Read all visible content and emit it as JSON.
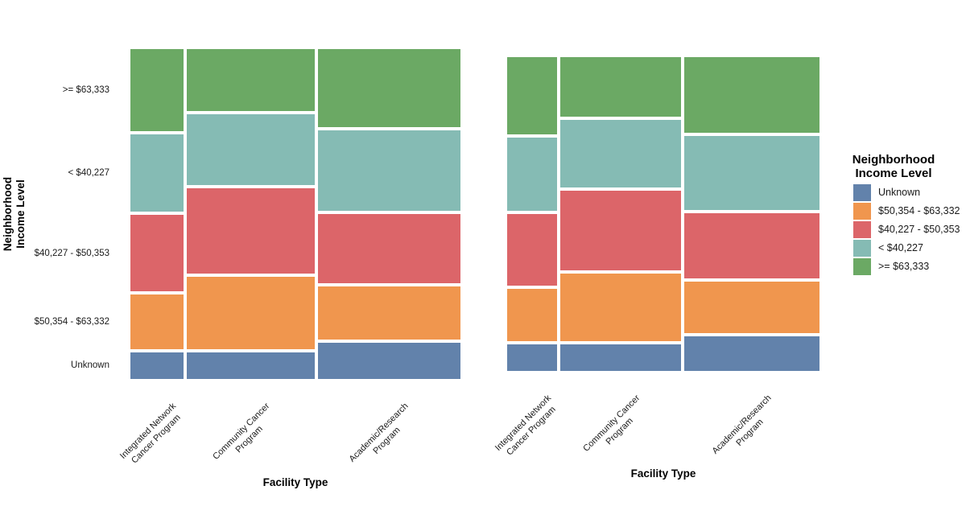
{
  "colors": {
    "Unknown": "#6282AB",
    "$50,354 - $63,332": "#F0964E",
    "$40,227 - $50,353": "#DC6569",
    "< $40,227": "#85BBB4",
    ">= $63,333": "#6BA964"
  },
  "legend": {
    "title": "Neighborhood\nIncome Level",
    "items": [
      {
        "label": "Unknown",
        "color": "#6282AB"
      },
      {
        "label": "$50,354 - $63,332",
        "color": "#F0964E"
      },
      {
        "label": "$40,227 - $50,353",
        "color": "#DC6569"
      },
      {
        "label": "< $40,227",
        "color": "#85BBB4"
      },
      {
        "label": ">= $63,333",
        "color": "#6BA964"
      }
    ]
  },
  "chart_data": [
    {
      "type": "mosaic",
      "panel": "left",
      "xlabel": "Facility Type",
      "ylabel": "Neighborhood\nIncome Level",
      "x_categories": [
        "Integrated Network\nCancer Program",
        "Community Cancer\nProgram",
        "Academic/Research\nProgram"
      ],
      "y_categories_top_to_bottom": [
        ">= $63,333",
        "< $40,227",
        "$40,227 - $50,353",
        "$50,354 - $63,332",
        "Unknown"
      ],
      "column_width_pct": [
        16.4,
        39.5,
        44.1
      ],
      "segments_pct": [
        [
          26.0,
          24.3,
          24.1,
          17.2,
          8.4
        ],
        [
          19.6,
          22.2,
          27.0,
          22.8,
          8.4
        ],
        [
          24.5,
          25.6,
          21.8,
          16.8,
          11.3
        ]
      ],
      "legend_position": "right",
      "grid": false
    },
    {
      "type": "mosaic",
      "panel": "right",
      "xlabel": "Facility Type",
      "ylabel": "Neighborhood\nIncome Level",
      "x_categories": [
        "Integrated Network\nCancer Program",
        "Community Cancer\nProgram",
        "Academic/Research\nProgram"
      ],
      "y_categories_top_to_bottom": [
        ">= $63,333",
        "< $40,227",
        "$40,227 - $50,353",
        "$50,354 - $63,332",
        "Unknown"
      ],
      "column_width_pct": [
        16.2,
        39.5,
        44.3
      ],
      "segments_pct": [
        [
          25.7,
          24.4,
          23.7,
          17.5,
          8.7
        ],
        [
          19.7,
          22.5,
          26.6,
          22.5,
          8.7
        ],
        [
          25.2,
          24.6,
          21.6,
          17.2,
          11.4
        ]
      ],
      "legend_position": "none",
      "grid": false
    }
  ]
}
